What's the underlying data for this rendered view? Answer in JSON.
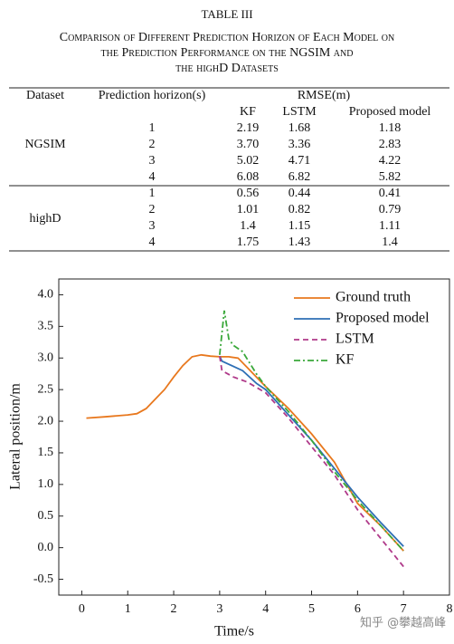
{
  "header": {
    "table_label": "TABLE III",
    "caption": [
      "Comparison of Different Prediction Horizon of Each Model on",
      "the Prediction Performance on the NGSIM and",
      "the highD Datasets"
    ]
  },
  "table": {
    "headers": [
      "Dataset",
      "Prediction horizon(s)",
      "RMSE(m)"
    ],
    "subheaders": [
      "KF",
      "LSTM",
      "Proposed model"
    ],
    "groups": [
      {
        "dataset": "NGSIM",
        "rows": [
          [
            "1",
            "2.19",
            "1.68",
            "1.18"
          ],
          [
            "2",
            "3.70",
            "3.36",
            "2.83"
          ],
          [
            "3",
            "5.02",
            "4.71",
            "4.22"
          ],
          [
            "4",
            "6.08",
            "6.82",
            "5.82"
          ]
        ]
      },
      {
        "dataset": "highD",
        "rows": [
          [
            "1",
            "0.56",
            "0.44",
            "0.41"
          ],
          [
            "2",
            "1.01",
            "0.82",
            "0.79"
          ],
          [
            "3",
            "1.4",
            "1.15",
            "1.11"
          ],
          [
            "4",
            "1.75",
            "1.43",
            "1.4"
          ]
        ]
      }
    ]
  },
  "chart_data": {
    "type": "line",
    "x_label": "Time/s",
    "y_label": "Lateral position/m",
    "xlim": [
      -0.5,
      8
    ],
    "ylim": [
      -0.75,
      4.25
    ],
    "xticks": [
      0,
      1,
      2,
      3,
      4,
      5,
      6,
      7,
      8
    ],
    "yticks": [
      {
        "value": 4,
        "label": "4.0"
      },
      {
        "value": 3.5,
        "label": "3.5"
      },
      {
        "value": 3,
        "label": "3.0"
      },
      {
        "value": 2.5,
        "label": "2.5"
      },
      {
        "value": 2,
        "label": "2.0"
      },
      {
        "value": 1.5,
        "label": "1.5"
      },
      {
        "value": 1,
        "label": "1.0"
      },
      {
        "value": 0.5,
        "label": "0.5"
      },
      {
        "value": 0,
        "label": "0.0"
      },
      {
        "value": -0.5,
        "label": "-0.5"
      }
    ],
    "legend": "upper right",
    "series": [
      {
        "name": "Ground truth",
        "color": "#e8781e",
        "linestyle": "solid",
        "x": [
          0.1,
          0.5,
          1.0,
          1.2,
          1.4,
          1.6,
          1.8,
          2.0,
          2.2,
          2.4,
          2.6,
          2.8,
          3.0,
          3.2,
          3.4,
          3.6,
          3.8,
          4.0,
          4.5,
          5.0,
          5.5,
          6.0,
          6.5,
          7.0
        ],
        "values": [
          2.05,
          2.07,
          2.1,
          2.12,
          2.2,
          2.35,
          2.5,
          2.7,
          2.88,
          3.02,
          3.05,
          3.03,
          3.02,
          3.02,
          3.0,
          2.85,
          2.7,
          2.55,
          2.2,
          1.8,
          1.35,
          0.7,
          0.35,
          -0.05
        ]
      },
      {
        "name": "Proposed model",
        "color": "#2e6fb5",
        "linestyle": "solid",
        "x": [
          3.0,
          3.05,
          3.2,
          3.5,
          3.8,
          4.0,
          4.5,
          5.0,
          5.5,
          6.0,
          6.5,
          7.0
        ],
        "values": [
          3.03,
          2.95,
          2.9,
          2.8,
          2.6,
          2.5,
          2.1,
          1.7,
          1.25,
          0.8,
          0.4,
          0.02
        ]
      },
      {
        "name": "LSTM",
        "color": "#b03a8a",
        "linestyle": "dashed",
        "x": [
          3.0,
          3.05,
          3.3,
          3.6,
          4.0,
          4.5,
          5.0,
          5.5,
          6.0,
          6.5,
          7.0
        ],
        "values": [
          3.03,
          2.8,
          2.7,
          2.62,
          2.45,
          2.05,
          1.6,
          1.15,
          0.6,
          0.15,
          -0.3
        ]
      },
      {
        "name": "KF",
        "color": "#3aa83a",
        "linestyle": "dashdot",
        "x": [
          3.0,
          3.1,
          3.2,
          3.3,
          3.5,
          3.8,
          4.0,
          4.5,
          5.0,
          5.5,
          6.0,
          6.5,
          7.0
        ],
        "values": [
          3.05,
          3.75,
          3.3,
          3.2,
          3.1,
          2.75,
          2.55,
          2.15,
          1.7,
          1.2,
          0.75,
          0.35,
          -0.05
        ]
      }
    ]
  },
  "watermark": "知乎 @攀越高峰"
}
